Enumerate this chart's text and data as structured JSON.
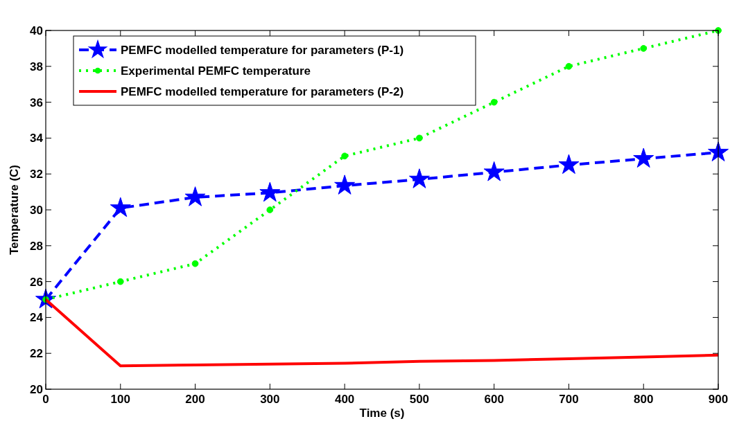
{
  "chart_data": {
    "type": "line",
    "xlabel": "Time (s)",
    "ylabel": "Temperature (C)",
    "x": [
      0,
      100,
      200,
      300,
      400,
      500,
      600,
      700,
      800,
      900
    ],
    "series": [
      {
        "name": "PEMFC modelled temperature for parameters (P-1)",
        "color": "#0000ff",
        "marker": "star",
        "line_style": "dashed",
        "values": [
          25,
          30.1,
          30.7,
          30.95,
          31.35,
          31.7,
          32.1,
          32.5,
          32.85,
          33.2
        ]
      },
      {
        "name": "Experimental PEMFC temperature",
        "color": "#00ff00",
        "marker": "circle",
        "line_style": "dotted",
        "values": [
          25,
          26,
          27,
          30,
          33,
          34,
          36,
          38,
          39,
          40
        ]
      },
      {
        "name": "PEMFC modelled temperature for parameters (P-2)",
        "color": "#ff0000",
        "marker": "none",
        "line_style": "solid",
        "values": [
          25,
          21.3,
          21.35,
          21.4,
          21.45,
          21.55,
          21.6,
          21.7,
          21.8,
          21.9
        ]
      }
    ],
    "xlim": [
      0,
      900
    ],
    "xticks": [
      0,
      100,
      200,
      300,
      400,
      500,
      600,
      700,
      800,
      900
    ],
    "ylim": [
      20,
      40
    ],
    "yticks": [
      20,
      22,
      24,
      26,
      28,
      30,
      32,
      34,
      36,
      38,
      40
    ],
    "legend": "top left",
    "grid": false
  }
}
